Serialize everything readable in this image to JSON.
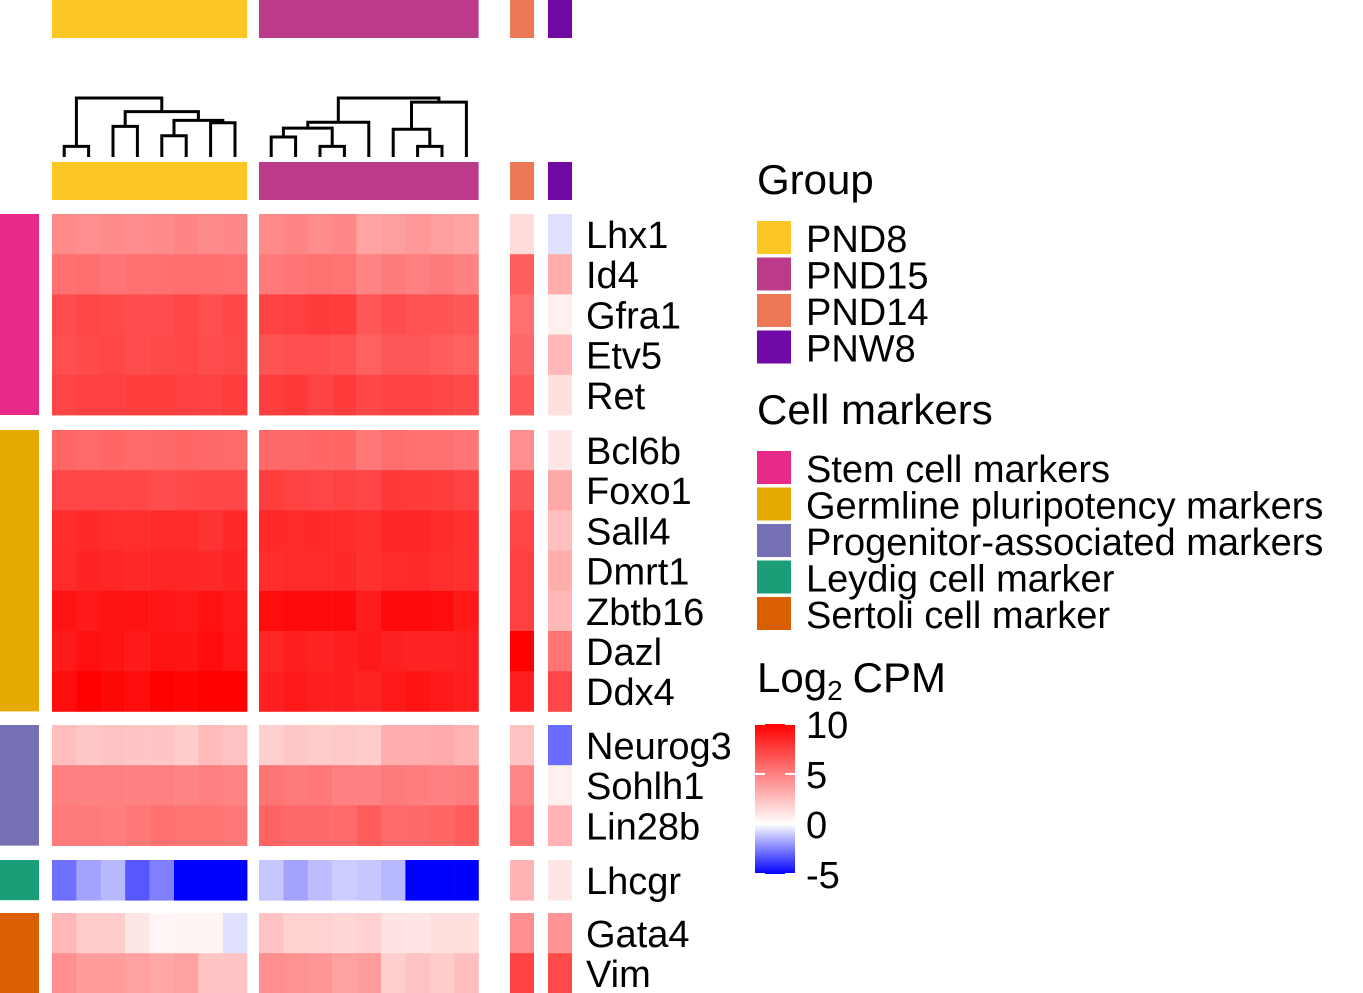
{
  "chart_data": {
    "type": "heatmap",
    "title": "",
    "value_scale_label": "CPM",
    "value_scale_prefix": "Log",
    "value_scale_subscript": "2",
    "color_scale": {
      "colors": [
        "#0000ff",
        "#ffffff",
        "#ff0000"
      ],
      "domain": [
        -5,
        0,
        10
      ],
      "ticks": [
        10,
        5,
        0,
        -5
      ]
    },
    "groups": [
      {
        "name": "PND8",
        "color": "#fcc625",
        "n_samples": 8,
        "clustered": true
      },
      {
        "name": "PND15",
        "color": "#bb3b8a",
        "n_samples": 9,
        "clustered": true
      },
      {
        "name": "PND14",
        "color": "#ed7855",
        "n_samples": 1,
        "clustered": false
      },
      {
        "name": "PNW8",
        "color": "#7009a6",
        "n_samples": 1,
        "clustered": false
      }
    ],
    "group_legend_title": "Group",
    "marker_legend_title": "Cell markers",
    "marker_sets": [
      {
        "name": "Stem cell markers",
        "color": "#e7298a",
        "genes": [
          "Lhx1",
          "Id4",
          "Gfra1",
          "Etv5",
          "Ret"
        ]
      },
      {
        "name": "Germline pluripotency markers",
        "color": "#e6ab02",
        "genes": [
          "Bcl6b",
          "Foxo1",
          "Sall4",
          "Dmrt1",
          "Zbtb16",
          "Dazl",
          "Ddx4"
        ]
      },
      {
        "name": "Progenitor-associated markers",
        "color": "#7570b3",
        "genes": [
          "Neurog3",
          "Sohlh1",
          "Lin28b"
        ]
      },
      {
        "name": "Leydig cell marker",
        "color": "#1b9e77",
        "genes": [
          "Lhcgr"
        ]
      },
      {
        "name": "Sertoli cell marker",
        "color": "#d95f02",
        "genes": [
          "Gata4",
          "Vim"
        ]
      }
    ],
    "rows": [
      "Lhx1",
      "Id4",
      "Gfra1",
      "Etv5",
      "Ret",
      "Bcl6b",
      "Foxo1",
      "Sall4",
      "Dmrt1",
      "Zbtb16",
      "Dazl",
      "Ddx4",
      "Neurog3",
      "Sohlh1",
      "Lin28b",
      "Lhcgr",
      "Gata4",
      "Vim"
    ],
    "values": {
      "Lhx1": [
        4.6,
        4.4,
        4.6,
        4.5,
        4.6,
        4.8,
        4.6,
        4.7,
        4.6,
        4.8,
        4.5,
        4.7,
        3.6,
        3.8,
        4.0,
        3.8,
        3.6,
        1.4,
        -0.6
      ],
      "Id4": [
        5.6,
        5.7,
        5.4,
        5.6,
        5.6,
        5.7,
        5.7,
        5.6,
        5.2,
        5.4,
        5.6,
        5.5,
        4.8,
        5.2,
        5.0,
        5.2,
        4.9,
        6.3,
        3.2
      ],
      "Gfra1": [
        7.0,
        7.3,
        7.1,
        7.0,
        7.0,
        7.2,
        6.9,
        7.2,
        7.4,
        7.5,
        7.7,
        7.6,
        6.6,
        7.0,
        6.8,
        6.7,
        6.6,
        5.6,
        0.6
      ],
      "Etv5": [
        6.9,
        7.1,
        7.3,
        7.0,
        7.1,
        7.2,
        7.0,
        7.1,
        6.7,
        6.9,
        6.9,
        6.8,
        6.2,
        6.6,
        6.6,
        6.4,
        6.2,
        5.9,
        2.8
      ],
      "Ret": [
        7.3,
        7.5,
        7.5,
        7.6,
        7.6,
        7.5,
        7.4,
        7.6,
        7.6,
        7.8,
        7.4,
        7.7,
        7.2,
        7.4,
        7.4,
        7.3,
        7.1,
        6.5,
        1.2
      ],
      "Bcl6b": [
        6.0,
        5.8,
        6.0,
        5.8,
        5.9,
        6.0,
        5.9,
        5.8,
        5.9,
        5.9,
        6.0,
        6.0,
        5.3,
        5.7,
        5.6,
        5.6,
        5.4,
        4.4,
        1.0
      ],
      "Foxo1": [
        7.2,
        7.3,
        7.2,
        7.2,
        7.0,
        7.1,
        7.2,
        7.2,
        7.6,
        7.4,
        7.3,
        7.4,
        7.3,
        7.8,
        7.7,
        7.6,
        7.4,
        6.6,
        3.4
      ],
      "Sall4": [
        8.2,
        8.4,
        8.2,
        8.2,
        8.3,
        8.3,
        8.0,
        8.4,
        8.4,
        8.3,
        8.4,
        8.3,
        8.1,
        8.5,
        8.5,
        8.3,
        8.1,
        7.3,
        2.5
      ],
      "Dmrt1": [
        8.3,
        8.6,
        8.5,
        8.4,
        8.5,
        8.5,
        8.4,
        8.6,
        8.2,
        8.3,
        8.3,
        8.4,
        8.1,
        8.3,
        8.4,
        8.2,
        8.1,
        7.5,
        3.2
      ],
      "Zbtb16": [
        9.3,
        9.0,
        9.2,
        9.3,
        9.1,
        9.0,
        9.3,
        9.0,
        9.5,
        9.6,
        9.6,
        9.6,
        8.9,
        9.6,
        9.6,
        9.5,
        9.0,
        7.5,
        2.8
      ],
      "Dazl": [
        9.0,
        9.4,
        9.2,
        9.0,
        9.3,
        9.2,
        9.5,
        9.1,
        8.5,
        8.8,
        8.6,
        8.8,
        9.0,
        8.7,
        8.6,
        8.6,
        8.7,
        10.5,
        5.5
      ],
      "Ddx4": [
        9.5,
        10.2,
        9.7,
        9.5,
        10.0,
        9.8,
        10.2,
        10.3,
        8.7,
        9.0,
        8.8,
        8.8,
        8.6,
        9.0,
        9.2,
        9.0,
        8.8,
        8.8,
        7.2
      ],
      "Neurog3": [
        2.6,
        2.2,
        2.4,
        2.3,
        2.3,
        2.0,
        2.7,
        2.4,
        1.9,
        2.2,
        2.0,
        2.1,
        2.0,
        3.2,
        3.2,
        3.3,
        3.0,
        2.4,
        -2.9
      ],
      "Sohlh1": [
        5.0,
        4.9,
        5.0,
        4.9,
        5.0,
        4.8,
        5.0,
        4.8,
        5.4,
        5.2,
        5.3,
        5.0,
        4.9,
        5.2,
        5.1,
        5.0,
        5.1,
        4.7,
        0.6
      ],
      "Lin28b": [
        5.2,
        5.2,
        5.1,
        5.3,
        5.6,
        5.5,
        5.5,
        5.3,
        6.1,
        5.9,
        5.9,
        5.8,
        6.4,
        5.8,
        5.9,
        6.0,
        6.4,
        5.4,
        3.0
      ],
      "Lhcgr": [
        -2.8,
        -1.8,
        -1.4,
        -3.3,
        -2.5,
        -5.0,
        -5.0,
        -5.0,
        -1.1,
        -1.8,
        -1.3,
        -1.0,
        -1.1,
        -1.4,
        -5.0,
        -5.0,
        -5.0,
        3.0,
        1.0
      ],
      "Gata4": [
        2.8,
        2.0,
        2.0,
        1.0,
        0.3,
        0.4,
        0.4,
        -0.6,
        2.4,
        1.8,
        1.8,
        1.6,
        1.8,
        1.1,
        1.0,
        1.3,
        1.3,
        4.4,
        4.2
      ],
      "Vim": [
        4.4,
        3.9,
        3.9,
        3.7,
        3.5,
        3.7,
        2.3,
        2.3,
        4.4,
        4.3,
        4.1,
        3.7,
        3.9,
        1.9,
        2.4,
        2.0,
        2.6,
        7.4,
        7.1
      ]
    },
    "dendrograms": {
      "PND8": [
        [
          1,
          2,
          0.18
        ],
        [
          3,
          4,
          0.52
        ],
        [
          5,
          6,
          0.36
        ],
        [
          7,
          8,
          0.58
        ],
        [
          -3,
          -4,
          0.62
        ],
        [
          -2,
          -5,
          0.77
        ],
        [
          -1,
          -6,
          1.0
        ]
      ],
      "PND15": [
        [
          3,
          4,
          0.18
        ],
        [
          1,
          2,
          0.34
        ],
        [
          -1,
          -2,
          0.49
        ],
        [
          7,
          8,
          0.18
        ],
        [
          6,
          -4,
          0.47
        ],
        [
          -3,
          5,
          0.59
        ],
        [
          9,
          -5,
          0.93
        ],
        [
          -6,
          -7,
          1.0
        ]
      ]
    },
    "grid": false,
    "legend_position": "right"
  }
}
